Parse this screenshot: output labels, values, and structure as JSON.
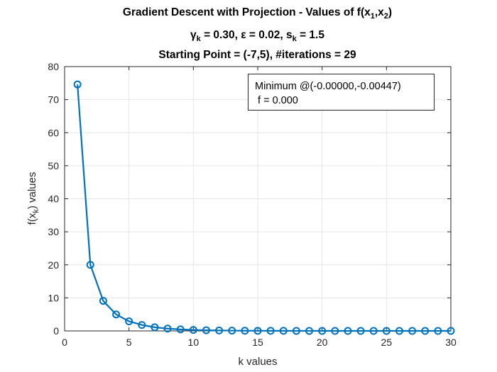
{
  "title_line1": "Gradient Descent with Projection - Values of f(x",
  "title_line1_sub1": "1",
  "title_line1_mid": ",x",
  "title_line1_sub2": "2",
  "title_line1_end": ")",
  "title_line2_a": "γ",
  "title_line2_sub_a": "k",
  "title_line2_b": " = 0.30, ε = 0.02, s",
  "title_line2_sub_b": "k",
  "title_line2_c": " = 1.5",
  "title_line3": "Starting Point = (-7,5),  #iterations = 29",
  "annotation_line1": "Minimum @(-0.00000,-0.00447)",
  "annotation_line2": " f = 0.000",
  "colors": {
    "series": "#0072BD",
    "grid": "#e6e6e6",
    "axis": "#262626"
  },
  "chart_data": {
    "type": "line",
    "xlabel": "k values",
    "ylabel_main": "f(x",
    "ylabel_sub": "k",
    "ylabel_end": ") values",
    "xlim": [
      0,
      30
    ],
    "ylim": [
      0,
      80
    ],
    "xticks": [
      0,
      5,
      10,
      15,
      20,
      25,
      30
    ],
    "yticks": [
      0,
      10,
      20,
      30,
      40,
      50,
      60,
      70,
      80
    ],
    "grid": true,
    "marker": "circle",
    "series": [
      {
        "x": [
          1,
          2,
          3,
          4,
          5,
          6,
          7,
          8,
          9,
          10,
          11,
          12,
          13,
          14,
          15,
          16,
          17,
          18,
          19,
          20,
          21,
          22,
          23,
          24,
          25,
          26,
          27,
          28,
          29,
          30
        ],
        "values": [
          74.6,
          20.0,
          9.1,
          5.0,
          2.9,
          1.8,
          1.1,
          0.7,
          0.45,
          0.3,
          0.2,
          0.13,
          0.09,
          0.06,
          0.04,
          0.03,
          0.02,
          0.01,
          0.01,
          0.0,
          0.0,
          0.0,
          0.0,
          0.0,
          0.0,
          0.0,
          0.0,
          0.0,
          0.0,
          0.0
        ]
      }
    ]
  }
}
